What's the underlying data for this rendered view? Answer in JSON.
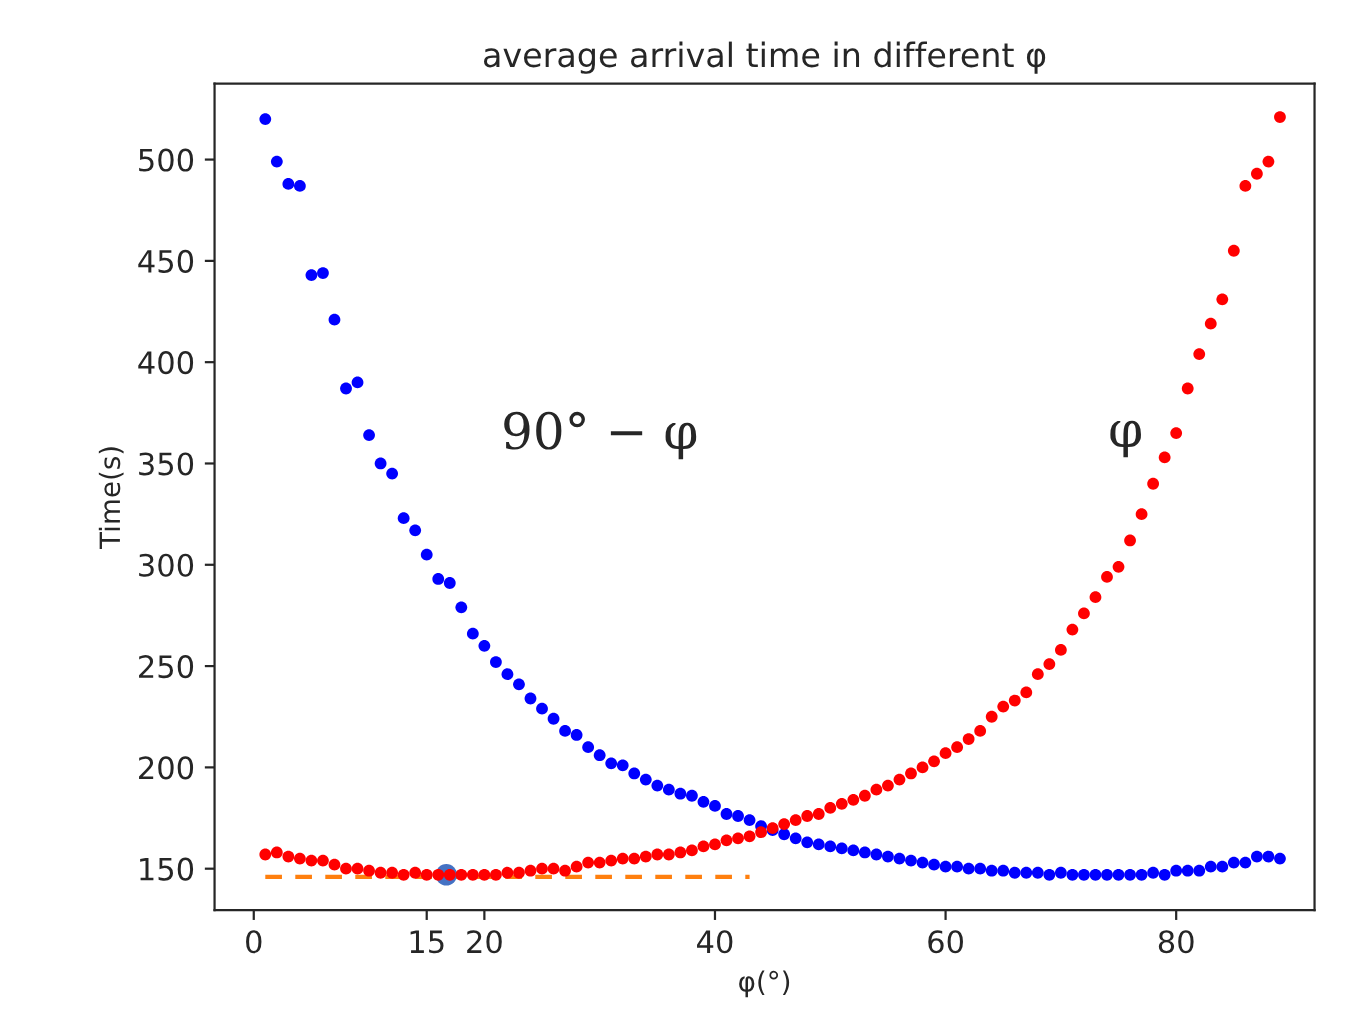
{
  "chart_data": {
    "type": "scatter",
    "title": "average arrival time in different φ",
    "xlabel": "φ(°)",
    "ylabel": "Time(s)",
    "x": [
      1,
      2,
      3,
      4,
      5,
      6,
      7,
      8,
      9,
      10,
      11,
      12,
      13,
      14,
      15,
      16,
      17,
      18,
      19,
      20,
      21,
      22,
      23,
      24,
      25,
      26,
      27,
      28,
      29,
      30,
      31,
      32,
      33,
      34,
      35,
      36,
      37,
      38,
      39,
      40,
      41,
      42,
      43,
      44,
      45,
      46,
      47,
      48,
      49,
      50,
      51,
      52,
      53,
      54,
      55,
      56,
      57,
      58,
      59,
      60,
      61,
      62,
      63,
      64,
      65,
      66,
      67,
      68,
      69,
      70,
      71,
      72,
      73,
      74,
      75,
      76,
      77,
      78,
      79,
      80,
      81,
      82,
      83,
      84,
      85,
      86,
      87,
      88,
      89
    ],
    "series": [
      {
        "name": "90° − φ",
        "color": "#0000ff",
        "values": [
          520,
          499,
          488,
          487,
          443,
          444,
          421,
          387,
          390,
          364,
          350,
          345,
          323,
          317,
          305,
          293,
          291,
          279,
          266,
          260,
          252,
          246,
          241,
          234,
          229,
          224,
          218,
          216,
          210,
          206,
          202,
          201,
          197,
          194,
          191,
          189,
          187,
          186,
          183,
          181,
          177,
          176,
          174,
          171,
          169,
          167,
          165,
          163,
          162,
          161,
          160,
          159,
          158,
          157,
          156,
          155,
          154,
          153,
          152,
          151,
          151,
          150,
          150,
          149,
          149,
          148,
          148,
          148,
          147,
          148,
          147,
          147,
          147,
          147,
          147,
          147,
          147,
          148,
          147,
          149,
          149,
          149,
          151,
          151,
          153,
          153,
          156,
          156,
          155
        ]
      },
      {
        "name": "φ",
        "color": "#ff0000",
        "values": [
          157,
          158,
          156,
          155,
          154,
          154,
          152,
          150,
          150,
          149,
          148,
          148,
          147,
          148,
          147,
          147,
          147,
          147,
          147,
          147,
          147,
          148,
          148,
          149,
          150,
          150,
          149,
          151,
          153,
          153,
          154,
          155,
          155,
          156,
          157,
          157,
          158,
          159,
          161,
          162,
          164,
          165,
          166,
          168,
          170,
          172,
          174,
          176,
          177,
          180,
          182,
          184,
          186,
          189,
          191,
          194,
          197,
          200,
          203,
          207,
          210,
          214,
          218,
          225,
          230,
          233,
          237,
          246,
          251,
          258,
          268,
          276,
          284,
          294,
          299,
          312,
          325,
          340,
          353,
          365,
          387,
          404,
          419,
          431,
          455,
          487,
          493,
          499,
          521
        ]
      },
      {
        "type": "line",
        "color": "#ff7f0e",
        "line_style": "dashed",
        "marker": "none",
        "x": [
          1,
          43
        ],
        "values": [
          146,
          146
        ]
      },
      {
        "type": "bubble",
        "color": "#4472c4",
        "x": [
          16.7
        ],
        "values": [
          147
        ],
        "sizes": [
          1
        ]
      }
    ],
    "xlim": [
      -3.4,
      92
    ],
    "ylim": [
      129.5,
      537.5
    ],
    "xticks": [
      0,
      15,
      20,
      40,
      60,
      80
    ],
    "yticks": [
      150,
      200,
      250,
      300,
      350,
      400,
      450,
      500
    ],
    "marker": "circle"
  }
}
